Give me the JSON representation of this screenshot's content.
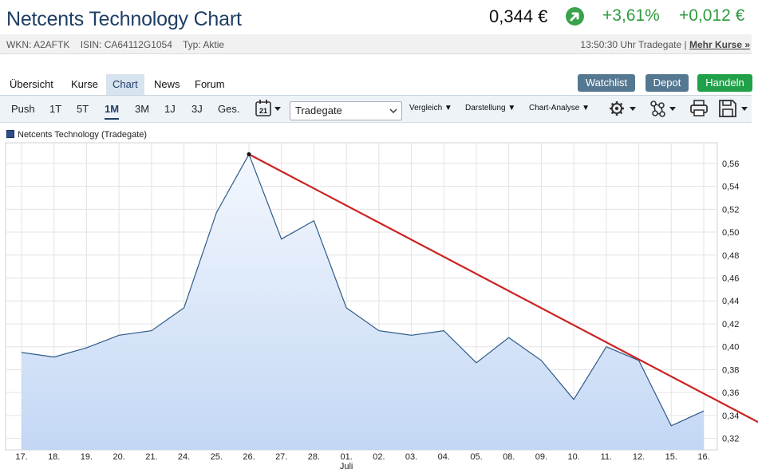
{
  "header": {
    "title": "Netcents Technology Chart",
    "price": "0,344 €",
    "change_pct": "+3,61%",
    "change_abs": "+0,012 €",
    "trend_icon": "arrow-up-right-icon",
    "positive_color": "#2e9c3f"
  },
  "meta": {
    "wkn": "WKN: A2AFTK",
    "isin": "ISIN: CA64112G1054",
    "typ": "Typ: Aktie",
    "time_venue": "13:50:30 Uhr Tradegate",
    "separator": "|",
    "more_prices": "Mehr Kurse »"
  },
  "tabs": [
    "Übersicht",
    "Kurse",
    "Chart",
    "News",
    "Forum"
  ],
  "actions": {
    "watchlist": "Watchlist",
    "depot": "Depot",
    "handeln": "Handeln"
  },
  "toolbar": {
    "ranges": [
      "Push",
      "1T",
      "5T",
      "1M",
      "3M",
      "1J",
      "3J",
      "Ges."
    ],
    "active_range": "1M",
    "calendar_day": "21",
    "venue_select": "Tradegate",
    "menus": [
      "Vergleich",
      "Darstellung",
      "Chart-Analyse"
    ],
    "icons": [
      "calendar-icon",
      "gear-icon",
      "network-icon",
      "printer-icon",
      "save-icon"
    ]
  },
  "legend": {
    "label": "Netcents Technology (Tradegate)"
  },
  "chart_data": {
    "type": "area",
    "series": [
      {
        "name": "Netcents Technology (Tradegate)",
        "color": "#2d5a8a",
        "fill": "#c8dbf5",
        "values": [
          0.395,
          0.391,
          0.399,
          0.41,
          0.414,
          0.434,
          0.517,
          0.568,
          0.494,
          0.51,
          0.434,
          0.414,
          0.41,
          0.414,
          0.386,
          0.408,
          0.388,
          0.354,
          0.4,
          0.388,
          0.331,
          0.344
        ]
      }
    ],
    "categories": [
      "17.",
      "18.",
      "19.",
      "20.",
      "21.",
      "24.",
      "25.",
      "26.",
      "27.",
      "28.",
      "01.",
      "02.",
      "03.",
      "04.",
      "05.",
      "08.",
      "09.",
      "10.",
      "11.",
      "12.",
      "15.",
      "16."
    ],
    "month_label": "Juli",
    "month_label_at": "01.",
    "yticks": [
      "0,32",
      "0,34",
      "0,36",
      "0,38",
      "0,40",
      "0,42",
      "0,44",
      "0,46",
      "0,48",
      "0,50",
      "0,52",
      "0,54",
      "0,56"
    ],
    "ylim": [
      0.31,
      0.578
    ],
    "grid": true,
    "y_axis_position": "right",
    "trendline": {
      "color": "#cc2222",
      "from": {
        "x": "26.",
        "y": 0.568
      },
      "through": {
        "x": "12.",
        "y": 0.389
      }
    }
  }
}
